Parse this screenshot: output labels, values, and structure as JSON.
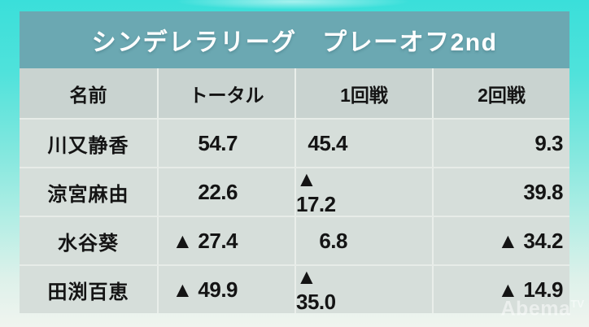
{
  "title": "シンデレラリーグ　プレーオフ2nd",
  "watermark": {
    "brand": "Abema",
    "suffix": "TV"
  },
  "colors": {
    "frame_top": "#3ADFDA",
    "frame_bottom": "#F0F4EF",
    "title_bar": "#6BA8B2",
    "header_bg": "#C9D3D0",
    "row_bg": "#D6DEDA",
    "separator": "#E9EEEA",
    "text": "#141414",
    "title_text": "#FFFFFF"
  },
  "chart_data": {
    "type": "table",
    "title": "シンデレラリーグ　プレーオフ2nd",
    "columns": [
      "名前",
      "トータル",
      "1回戦",
      "2回戦"
    ],
    "negative_marker": "▲",
    "rows": [
      {
        "name": "川又静香",
        "cells": [
          "54.7",
          "45.4",
          "9.3"
        ],
        "values": [
          54.7,
          45.4,
          9.3
        ]
      },
      {
        "name": "涼宮麻由",
        "cells": [
          "22.6",
          "▲ 17.2",
          "39.8"
        ],
        "values": [
          22.6,
          -17.2,
          39.8
        ]
      },
      {
        "name": "水谷葵",
        "cells": [
          "▲ 27.4",
          "6.8",
          "▲ 34.2"
        ],
        "values": [
          -27.4,
          6.8,
          -34.2
        ]
      },
      {
        "name": "田渕百恵",
        "cells": [
          "▲ 49.9",
          "▲ 35.0",
          "▲ 14.9"
        ],
        "values": [
          -49.9,
          -35.0,
          -14.9
        ]
      }
    ]
  }
}
